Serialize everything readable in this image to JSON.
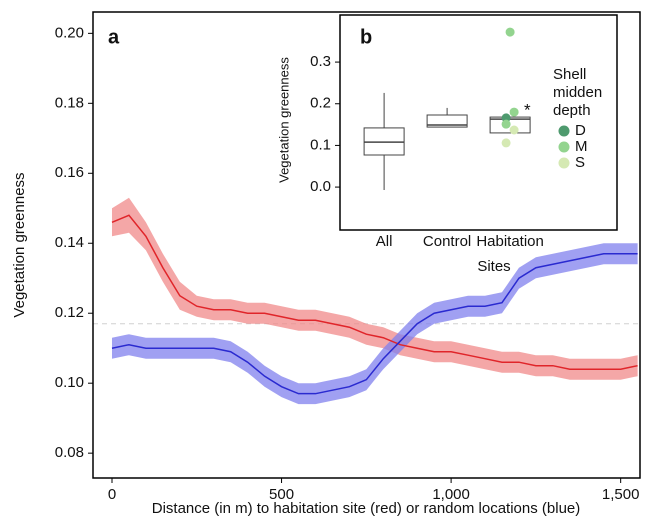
{
  "chart_data": [
    {
      "type": "line",
      "panel_label": "a",
      "xlabel": "Distance (in m) to habitation site (red) or random locations (blue)",
      "ylabel": "Vegetation greenness",
      "x": [
        0,
        50,
        100,
        150,
        200,
        250,
        300,
        350,
        400,
        450,
        500,
        550,
        600,
        650,
        700,
        750,
        800,
        850,
        900,
        950,
        1000,
        1050,
        1100,
        1150,
        1200,
        1250,
        1300,
        1350,
        1400,
        1450,
        1500,
        1550
      ],
      "series": [
        {
          "color": "#e0252a",
          "band_color": "#f08a8a",
          "values": [
            0.146,
            0.148,
            0.142,
            0.133,
            0.125,
            0.122,
            0.121,
            0.121,
            0.12,
            0.12,
            0.119,
            0.118,
            0.118,
            0.117,
            0.116,
            0.114,
            0.113,
            0.111,
            0.11,
            0.109,
            0.109,
            0.108,
            0.107,
            0.106,
            0.106,
            0.105,
            0.105,
            0.104,
            0.104,
            0.104,
            0.104,
            0.105
          ],
          "upper": [
            0.15,
            0.153,
            0.146,
            0.137,
            0.129,
            0.125,
            0.124,
            0.124,
            0.123,
            0.123,
            0.122,
            0.121,
            0.121,
            0.12,
            0.119,
            0.117,
            0.116,
            0.114,
            0.113,
            0.112,
            0.112,
            0.111,
            0.11,
            0.109,
            0.109,
            0.108,
            0.108,
            0.107,
            0.107,
            0.107,
            0.107,
            0.108
          ],
          "lower": [
            0.142,
            0.143,
            0.138,
            0.129,
            0.121,
            0.119,
            0.118,
            0.118,
            0.117,
            0.117,
            0.116,
            0.115,
            0.115,
            0.114,
            0.113,
            0.111,
            0.11,
            0.108,
            0.107,
            0.106,
            0.106,
            0.105,
            0.104,
            0.103,
            0.103,
            0.102,
            0.102,
            0.101,
            0.101,
            0.101,
            0.101,
            0.102
          ]
        },
        {
          "color": "#2a2ad0",
          "band_color": "#8080ee",
          "values": [
            0.11,
            0.111,
            0.11,
            0.11,
            0.11,
            0.11,
            0.11,
            0.109,
            0.106,
            0.102,
            0.099,
            0.097,
            0.097,
            0.098,
            0.099,
            0.101,
            0.107,
            0.112,
            0.117,
            0.12,
            0.121,
            0.122,
            0.122,
            0.123,
            0.13,
            0.133,
            0.134,
            0.135,
            0.136,
            0.137,
            0.137,
            0.137
          ],
          "upper": [
            0.113,
            0.114,
            0.113,
            0.113,
            0.113,
            0.113,
            0.113,
            0.112,
            0.109,
            0.105,
            0.102,
            0.1,
            0.1,
            0.101,
            0.102,
            0.104,
            0.11,
            0.115,
            0.12,
            0.123,
            0.124,
            0.125,
            0.125,
            0.126,
            0.133,
            0.136,
            0.137,
            0.138,
            0.139,
            0.14,
            0.14,
            0.14
          ],
          "lower": [
            0.107,
            0.108,
            0.107,
            0.107,
            0.107,
            0.107,
            0.107,
            0.106,
            0.103,
            0.099,
            0.096,
            0.094,
            0.094,
            0.095,
            0.096,
            0.098,
            0.104,
            0.109,
            0.114,
            0.117,
            0.118,
            0.119,
            0.119,
            0.12,
            0.127,
            0.13,
            0.131,
            0.132,
            0.133,
            0.134,
            0.134,
            0.134
          ]
        }
      ],
      "hline": {
        "value": 0.117,
        "color": "#d0d0d0"
      },
      "xlim": [
        -56,
        1557
      ],
      "xticks": [
        0,
        500,
        {
          "value": 1000,
          "label": "1,000"
        },
        {
          "value": 1500,
          "label": "1,500"
        }
      ],
      "ylim": [
        0.0729,
        0.2061
      ],
      "yticks": [
        0.08,
        {
          "value": 0.1,
          "label": "0.10"
        },
        0.12,
        0.14,
        0.16,
        0.18,
        {
          "value": 0.2,
          "label": "0.20"
        }
      ]
    },
    {
      "type": "box",
      "panel_label": "b",
      "ylabel": "Vegetation greenness",
      "xlabel": "Sites",
      "categories": [
        "All",
        "Control",
        "Habitation"
      ],
      "boxes": [
        {
          "whislo": -0.007,
          "q1": 0.077,
          "med": 0.108,
          "q3": 0.142,
          "whishi": 0.226
        },
        {
          "whislo": 0.144,
          "q1": 0.144,
          "med": 0.149,
          "q3": 0.173,
          "whishi": 0.19
        },
        {
          "whislo": 0.13,
          "q1": 0.13,
          "med": 0.163,
          "q3": 0.168,
          "whishi": 0.168
        }
      ],
      "legend_title": [
        "Shell",
        "midden",
        "depth"
      ],
      "points": [
        {
          "name": "D",
          "color": "#4e9a6e",
          "values": [
            0.166
          ]
        },
        {
          "name": "M",
          "color": "#93d48f",
          "values": [
            0.372,
            0.18,
            0.151
          ]
        },
        {
          "name": "S",
          "color": "#d5e9b3",
          "values": [
            0.137,
            0.106
          ]
        }
      ],
      "annotation": "*",
      "ylim": [
        -0.103,
        0.413
      ],
      "yticks": [
        {
          "value": 0,
          "label": "0.0"
        },
        0.1,
        0.2,
        0.3
      ]
    }
  ]
}
